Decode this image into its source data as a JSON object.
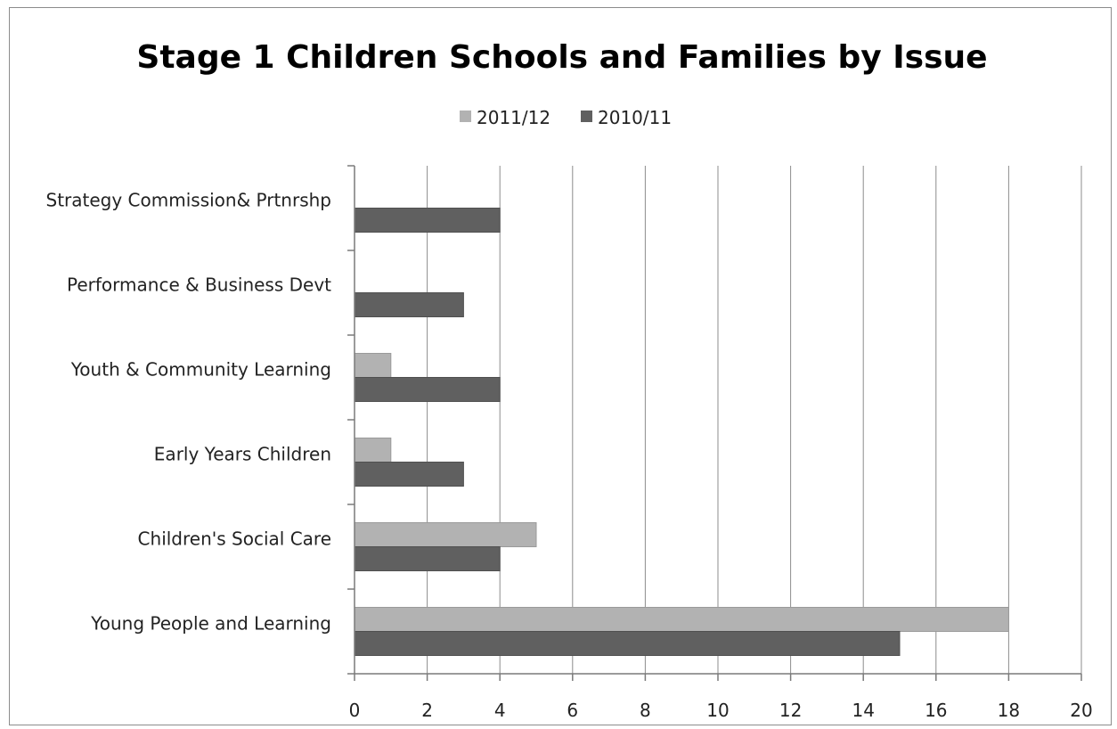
{
  "chart_data": {
    "type": "bar",
    "orientation": "horizontal",
    "title": "Stage 1 Children Schools and Families by Issue",
    "categories": [
      "Young People and Learning",
      "Children's Social Care",
      "Early Years Children",
      "Youth & Community Learning",
      "Performance & Business Devt",
      "Strategy Commission& Prtnrshp"
    ],
    "series": [
      {
        "name": "2011/12",
        "color": "#b2b2b2",
        "values": [
          18,
          5,
          1,
          1,
          0,
          0
        ]
      },
      {
        "name": "2010/11",
        "color": "#606060",
        "values": [
          15,
          4,
          3,
          4,
          3,
          4
        ]
      }
    ],
    "xlim": [
      0,
      20
    ],
    "xticks": [
      "0",
      "2",
      "4",
      "6",
      "8",
      "10",
      "12",
      "14",
      "16",
      "18",
      "20"
    ],
    "grid": "vertical",
    "legend_position": "top"
  }
}
